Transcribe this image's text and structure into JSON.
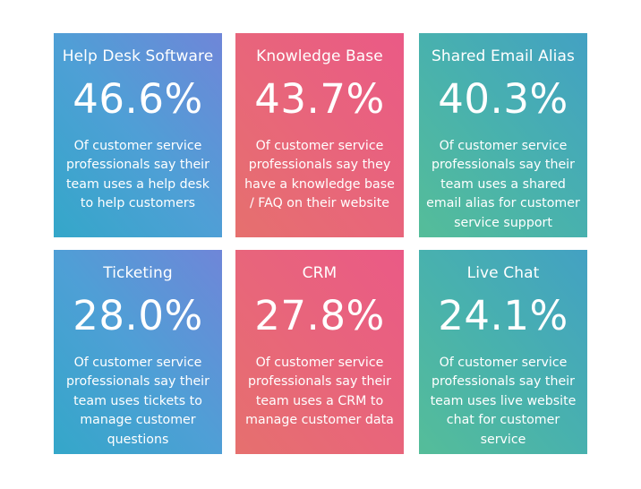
{
  "cards": [
    {
      "title": "Help Desk Software",
      "value": "46.6%",
      "description": "Of customer service professionals say their team uses a help desk to help customers"
    },
    {
      "title": "Knowledge Base",
      "value": "43.7%",
      "description": "Of customer service professionals say they have a knowledge base / FAQ on their website"
    },
    {
      "title": "Shared Email Alias",
      "value": "40.3%",
      "description": "Of customer service professionals say their team uses a shared email alias for customer service support"
    },
    {
      "title": "Ticketing",
      "value": "28.0%",
      "description": "Of customer service professionals say their team uses tickets to manage customer questions"
    },
    {
      "title": "CRM",
      "value": "27.8%",
      "description": "Of customer service professionals say their team uses a CRM to manage customer data"
    },
    {
      "title": "Live Chat",
      "value": "24.1%",
      "description": "Of customer service professionals say their team uses live website chat for customer service"
    }
  ],
  "colors": {
    "blue": "#4f9fd6",
    "red": "#e8657b",
    "teal": "#48b1ae"
  }
}
